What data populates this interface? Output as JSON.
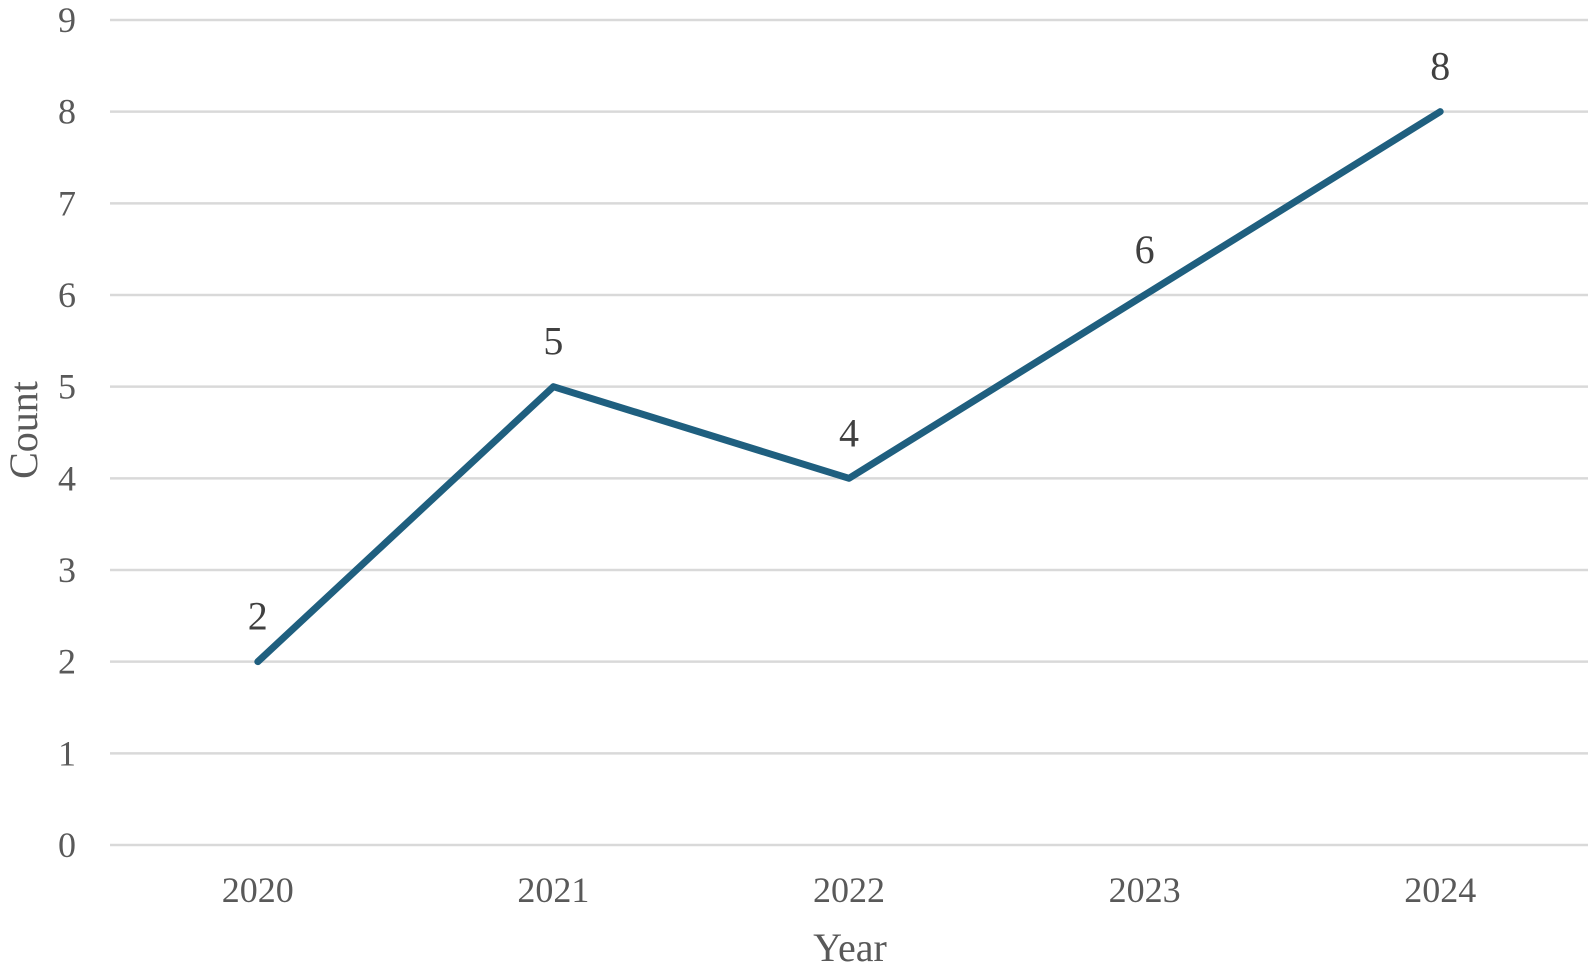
{
  "chart_data": {
    "type": "line",
    "categories": [
      "2020",
      "2021",
      "2022",
      "2023",
      "2024"
    ],
    "series": [
      {
        "values": [
          2,
          5,
          4,
          6,
          8
        ]
      }
    ],
    "data_labels": [
      "2",
      "5",
      "4",
      "6",
      "8"
    ],
    "xlabel": "Year",
    "ylabel": "Count",
    "ylim": [
      0,
      9
    ],
    "yticks": [
      0,
      1,
      2,
      3,
      4,
      5,
      6,
      7,
      8,
      9
    ],
    "grid": true,
    "legend": "none",
    "colors": {
      "line": "#1f5f7f",
      "grid": "#d9d9d9",
      "text": "#595959"
    }
  }
}
